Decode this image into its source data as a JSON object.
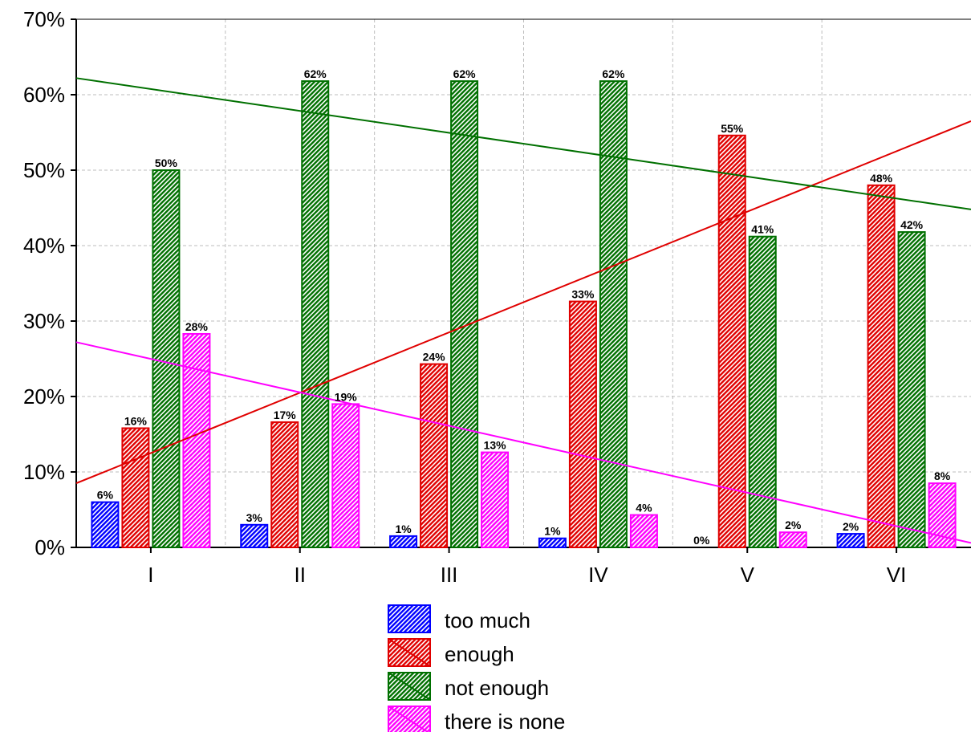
{
  "chart_data": {
    "type": "bar",
    "categories": [
      "I",
      "II",
      "III",
      "IV",
      "V",
      "VI"
    ],
    "ylim": [
      0,
      70
    ],
    "yticks": [
      "0%",
      "10%",
      "20%",
      "30%",
      "40%",
      "50%",
      "60%",
      "70%"
    ],
    "ytick_values": [
      0,
      10,
      20,
      30,
      40,
      50,
      60,
      70
    ],
    "grid": true,
    "legend_position": "bottom",
    "series": [
      {
        "name": "too much",
        "color": "#0000ff",
        "fill": "#5a5ae6",
        "values": [
          6,
          3,
          1.5,
          1.2,
          0,
          1.8
        ],
        "labels": [
          "6%",
          "3%",
          "1%",
          "1%",
          "0%",
          "2%"
        ]
      },
      {
        "name": "enough",
        "color": "#e00000",
        "fill": "#f08070",
        "values": [
          15.8,
          16.6,
          24.3,
          32.6,
          54.6,
          48
        ],
        "labels": [
          "16%",
          "17%",
          "24%",
          "33%",
          "55%",
          "48%"
        ]
      },
      {
        "name": "not enough",
        "color": "#007000",
        "fill": "#50a850",
        "values": [
          50,
          61.8,
          61.8,
          61.8,
          41.2,
          41.8
        ],
        "labels": [
          "50%",
          "62%",
          "62%",
          "62%",
          "41%",
          "42%"
        ]
      },
      {
        "name": "there is none",
        "color": "#ff00ff",
        "fill": "#f070f0",
        "values": [
          28.3,
          19,
          12.6,
          4.3,
          2,
          8.5
        ],
        "labels": [
          "28%",
          "19%",
          "13%",
          "4%",
          "2%",
          "8%"
        ]
      }
    ],
    "trend_lines": [
      {
        "series": "enough",
        "color": "#e00000",
        "y_start": 8.5,
        "y_end": 56.5
      },
      {
        "series": "not enough",
        "color": "#007000",
        "y_start": 62.2,
        "y_end": 44.8
      },
      {
        "series": "there is none",
        "color": "#ff00ff",
        "y_start": 27.2,
        "y_end": 0.6
      }
    ]
  }
}
